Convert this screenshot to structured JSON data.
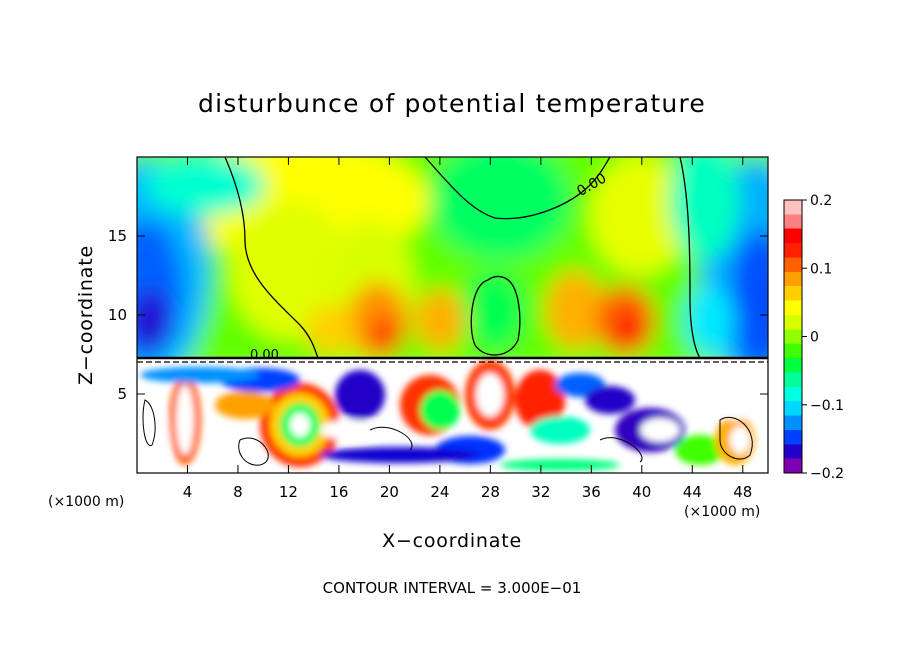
{
  "chart_data": {
    "type": "heatmap",
    "title": "disturbunce of potential temperature",
    "xlabel": "X−coordinate",
    "ylabel": "Z−coordinate",
    "x_unit_left": "(×1000 m)",
    "x_unit_right": "(×1000 m)",
    "x_range": [
      0,
      50
    ],
    "y_range": [
      0,
      20
    ],
    "x_ticks": [
      4,
      8,
      12,
      16,
      20,
      24,
      28,
      32,
      36,
      40,
      44,
      48
    ],
    "x_tick_labels": [
      "4",
      "8",
      "12",
      "16",
      "20",
      "24",
      "28",
      "32",
      "36",
      "40",
      "44",
      "48"
    ],
    "y_ticks": [
      5,
      10,
      15
    ],
    "y_tick_labels": [
      "5",
      "10",
      "15"
    ],
    "colorbar": {
      "range": [
        -0.2,
        0.2
      ],
      "ticks": [
        0.2,
        0.1,
        0,
        -0.1,
        -0.2
      ],
      "tick_labels": [
        "0.2",
        "0.1",
        "0",
        "−0.1",
        "−0.2"
      ],
      "colors": [
        "#7f00b0",
        "#2200c8",
        "#0040ff",
        "#0090ff",
        "#00d8ff",
        "#00ffe0",
        "#00ff9a",
        "#00ff40",
        "#40ff00",
        "#90ff00",
        "#d8ff00",
        "#ffff00",
        "#ffd000",
        "#ffa000",
        "#ff6000",
        "#ff2000",
        "#ff0000",
        "#ff8080",
        "#ffc0c0"
      ]
    },
    "contour_labels": [
      "0.00",
      "0.00"
    ],
    "footer": "CONTOUR INTERVAL = 3.000E−01"
  }
}
